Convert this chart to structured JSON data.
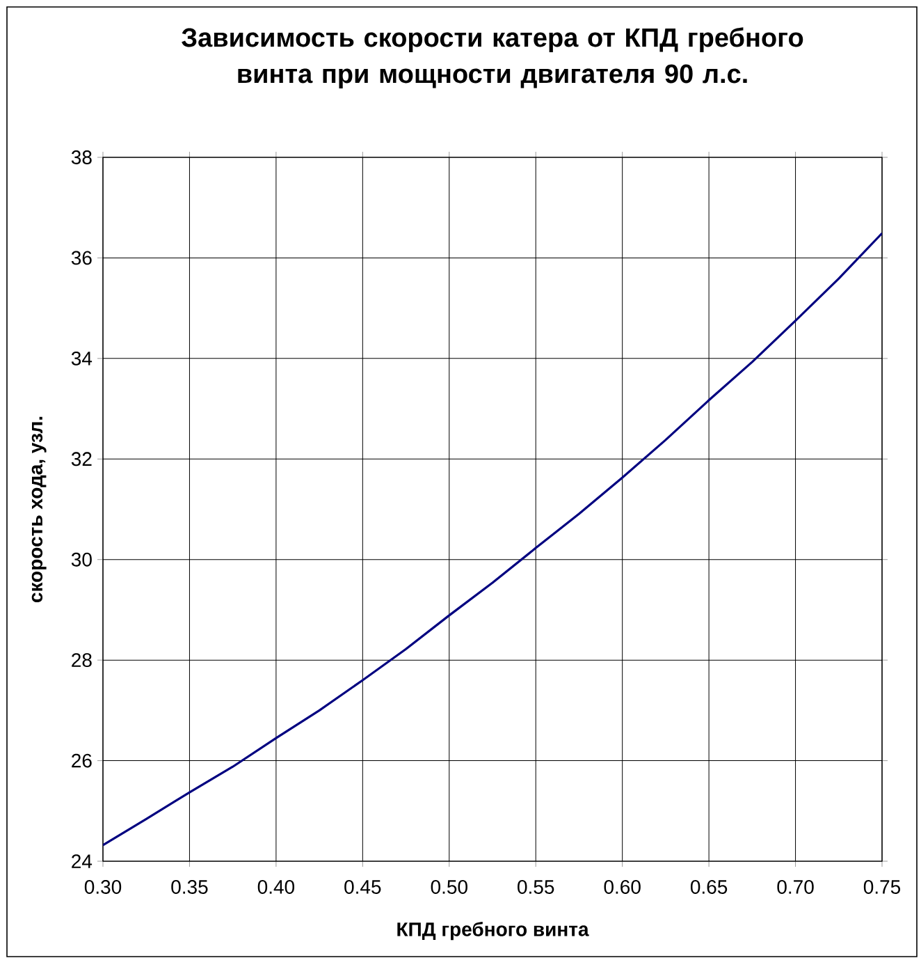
{
  "chart_data": {
    "type": "line",
    "title": "Зависимость скорости катера от КПД гребного винта при мощности двигателя 90 л.с.",
    "xlabel": "КПД гребного винта",
    "ylabel": "скорость хода, узл.",
    "x": [
      0.3,
      0.325,
      0.35,
      0.375,
      0.4,
      0.425,
      0.45,
      0.475,
      0.5,
      0.525,
      0.55,
      0.575,
      0.6,
      0.625,
      0.65,
      0.675,
      0.7,
      0.725,
      0.75
    ],
    "series": [
      {
        "color": "#000080",
        "values": [
          24.32,
          24.84,
          25.37,
          25.88,
          26.45,
          27.0,
          27.6,
          28.22,
          28.89,
          29.54,
          30.23,
          30.91,
          31.63,
          32.38,
          33.17,
          33.93,
          34.75,
          35.59,
          36.49
        ]
      }
    ],
    "xlim": [
      0.3,
      0.75
    ],
    "ylim": [
      24,
      38
    ],
    "xticks": [
      {
        "value": 0.3,
        "label": "0.30"
      },
      {
        "value": 0.35,
        "label": "0.35"
      },
      {
        "value": 0.4,
        "label": "0.40"
      },
      {
        "value": 0.45,
        "label": "0.45"
      },
      {
        "value": 0.5,
        "label": "0.50"
      },
      {
        "value": 0.55,
        "label": "0.55"
      },
      {
        "value": 0.6,
        "label": "0.60"
      },
      {
        "value": 0.65,
        "label": "0.65"
      },
      {
        "value": 0.7,
        "label": "0.70"
      },
      {
        "value": 0.75,
        "label": "0.75"
      }
    ],
    "yticks": [
      24,
      26,
      28,
      30,
      32,
      34,
      36,
      38
    ],
    "grid": true,
    "marker": "none",
    "line_style": "solid"
  }
}
